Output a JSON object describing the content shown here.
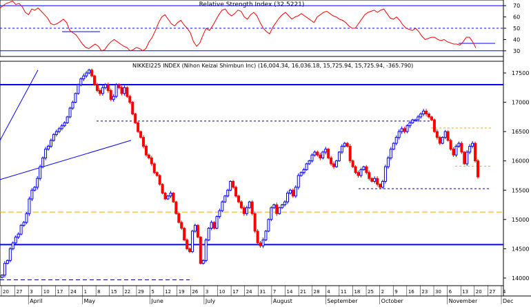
{
  "rsi_panel": {
    "title": "Relative Strength Index (32.5221)",
    "y_ticks": [
      "70",
      "60",
      "50",
      "40",
      "30"
    ],
    "y_tick_values": [
      70,
      60,
      50,
      40,
      30
    ],
    "ylim": [
      25,
      75
    ],
    "levels": {
      "upper_line": 70,
      "lower_line": 30,
      "mid_dashed": 50
    }
  },
  "price_panel": {
    "title": "NIKKEI225 INDEX (Nihon Keizai Shimbun Inc) (16,004.34, 16,036.18, 15,725.94, 15,725.94, -365.790)",
    "y_ticks": [
      "17500",
      "17000",
      "16500",
      "16000",
      "15500",
      "15000",
      "14500",
      "14000"
    ],
    "y_tick_values": [
      17500,
      17000,
      16500,
      16000,
      15500,
      15000,
      14500,
      14000
    ],
    "ylim": [
      13870,
      17700
    ]
  },
  "x_axis": {
    "day_labels": [
      "20",
      "27",
      "3",
      "10",
      "17",
      "24",
      "1",
      "8",
      "15",
      "22",
      "29",
      "5",
      "12",
      "19",
      "26",
      "3",
      "10",
      "17",
      "24",
      "31",
      "7",
      "14",
      "21",
      "28",
      "4",
      "11",
      "18",
      "25",
      "2",
      "9",
      "16",
      "23",
      "30",
      "6",
      "13",
      "20",
      "27",
      "4"
    ],
    "month_labels": [
      "April",
      "May",
      "June",
      "July",
      "August",
      "September",
      "October",
      "November",
      "Dec"
    ]
  },
  "colors": {
    "up": "#0000ff",
    "down": "#ff0000",
    "rsi": "#ff0000",
    "guide": "#0000ff",
    "support": "#ffa500",
    "grid": "#000000"
  },
  "chart_data": {
    "type": "candlestick",
    "title": "NIKKEI225 INDEX (Nihon Keizai Shimbun Inc) (16,004.34, 16,036.18, 15,725.94, 15,725.94, -365.790)",
    "last_bar": {
      "open": 16004.34,
      "high": 16036.18,
      "low": 15725.94,
      "close": 15725.94,
      "change": -365.79
    },
    "close_series_approx": [
      14050,
      14250,
      14300,
      14500,
      14600,
      14700,
      14750,
      14900,
      14950,
      15100,
      15350,
      15500,
      15550,
      15700,
      15900,
      16050,
      16200,
      16250,
      16350,
      16450,
      16500,
      16550,
      16600,
      16650,
      16750,
      16900,
      17000,
      17150,
      17300,
      17400,
      17450,
      17500,
      17550,
      17450,
      17300,
      17200,
      17150,
      17250,
      17300,
      17200,
      17050,
      17100,
      17300,
      17250,
      17150,
      17250,
      17100,
      17000,
      16800,
      16650,
      16500,
      16400,
      16250,
      16100,
      16050,
      15950,
      15800,
      15750,
      15600,
      15450,
      15350,
      15400,
      15450,
      15300,
      15100,
      14950,
      14850,
      14650,
      14500,
      14450,
      14800,
      14900,
      14700,
      14250,
      14300,
      14650,
      14850,
      14950,
      14850,
      15050,
      15150,
      15300,
      15400,
      15500,
      15650,
      15550,
      15400,
      15300,
      15200,
      15100,
      15200,
      15300,
      15100,
      14800,
      14600,
      14550,
      14650,
      14800,
      15000,
      15200,
      15250,
      15100,
      15200,
      15250,
      15300,
      15450,
      15500,
      15400,
      15550,
      15750,
      15800,
      15850,
      15950,
      16000,
      16100,
      16150,
      16100,
      16050,
      16150,
      16200,
      16050,
      15950,
      15900,
      16000,
      16150,
      16250,
      16300,
      16250,
      16000,
      15900,
      15800,
      15750,
      15850,
      15900,
      15800,
      15700,
      15650,
      15700,
      15600,
      15550,
      15650,
      15900,
      16050,
      16200,
      16300,
      16400,
      16500,
      16550,
      16500,
      16600,
      16650,
      16700,
      16700,
      16750,
      16800,
      16850,
      16800,
      16750,
      16700,
      16500,
      16400,
      16300,
      16400,
      16500,
      16350,
      16200,
      16100,
      16250,
      16300,
      16150,
      15950,
      16150,
      16250,
      16300,
      16000,
      15725.94
    ],
    "rsi_series_approx": [
      68,
      70,
      72,
      73,
      74,
      71,
      72,
      69,
      64,
      62,
      67,
      66,
      68,
      65,
      62,
      59,
      54,
      53,
      54,
      56,
      58,
      55,
      48,
      46,
      44,
      40,
      36,
      33,
      32,
      34,
      36,
      34,
      30,
      31,
      35,
      38,
      40,
      38,
      36,
      34,
      33,
      30,
      31,
      33,
      32,
      30,
      32,
      38,
      42,
      48,
      55,
      60,
      62,
      58,
      54,
      52,
      55,
      57,
      53,
      50,
      46,
      38,
      34,
      37,
      44,
      50,
      48,
      52,
      57,
      62,
      66,
      67,
      63,
      61,
      63,
      66,
      65,
      60,
      58,
      62,
      64,
      61,
      55,
      50,
      47,
      45,
      51,
      55,
      59,
      62,
      64,
      61,
      58,
      60,
      61,
      63,
      61,
      59,
      57,
      55,
      60,
      62,
      64,
      65,
      63,
      61,
      60,
      58,
      57,
      55,
      52,
      50,
      50,
      54,
      58,
      62,
      64,
      65,
      66,
      64,
      66,
      67,
      63,
      59,
      58,
      60,
      57,
      53,
      50,
      49,
      48,
      50,
      47,
      43,
      40,
      41,
      42,
      42,
      40,
      39,
      40,
      38,
      37,
      36,
      36,
      35,
      38,
      42,
      42,
      38,
      32.52
    ],
    "annotations": {
      "horizontal_lines": [
        17300,
        16680,
        15525,
        15125,
        14570,
        13970
      ],
      "channel": "dashed orange from recent high",
      "trendlines": 2
    },
    "xlabel": "",
    "ylabel": ""
  }
}
